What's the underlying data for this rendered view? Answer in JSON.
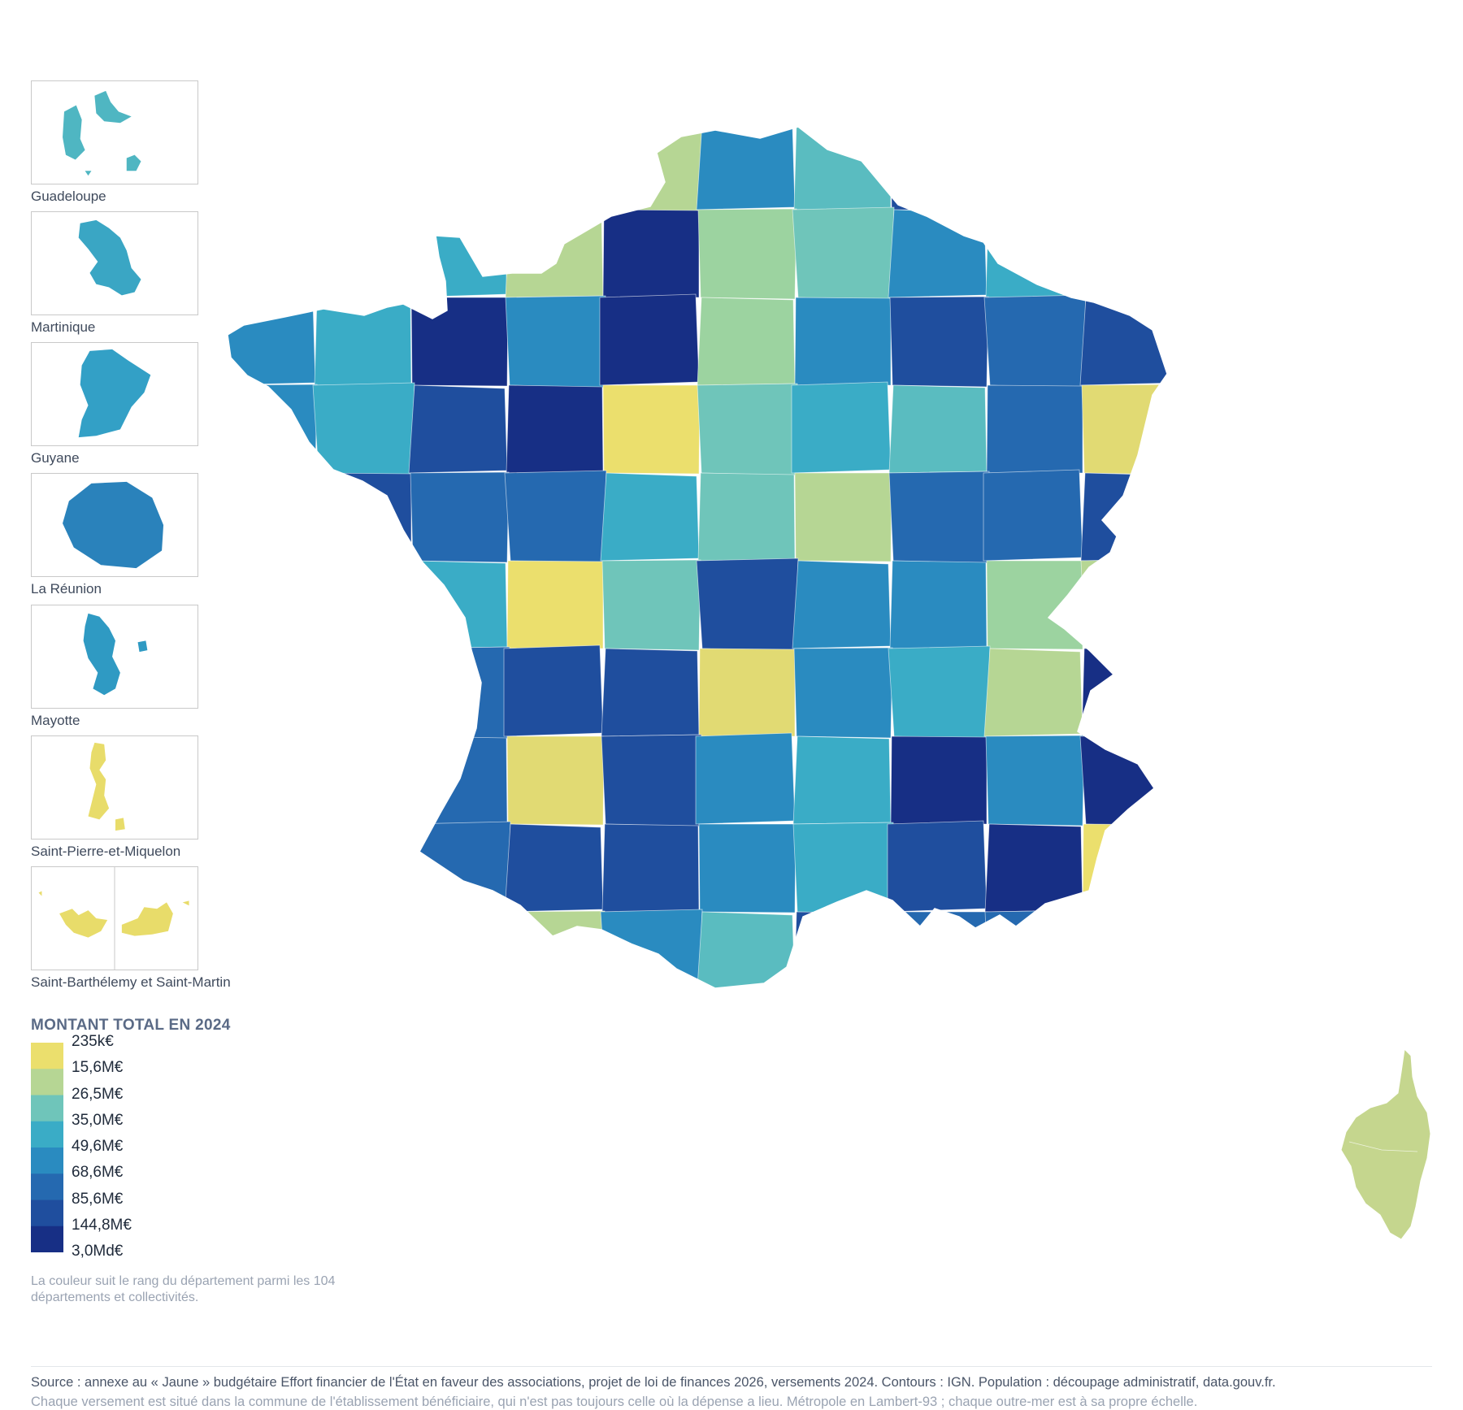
{
  "insets": [
    {
      "label": "Guadeloupe",
      "color": "#4fb6c2"
    },
    {
      "label": "Martinique",
      "color": "#3aa6c4"
    },
    {
      "label": "Guyane",
      "color": "#33a0c6"
    },
    {
      "label": "La Réunion",
      "color": "#2a82bb"
    },
    {
      "label": "Mayotte",
      "color": "#2f9ac3"
    },
    {
      "label": "Saint-Pierre-et-Miquelon",
      "color": "#e8dc6a"
    },
    {
      "label": "Saint-Barthélemy et Saint-Martin",
      "color": "#e8dc6a"
    }
  ],
  "legend": {
    "title": "MONTANT TOTAL EN 2024",
    "ticks": [
      "235k€",
      "15,6M€",
      "26,5M€",
      "35,0M€",
      "49,6M€",
      "68,6M€",
      "85,6M€",
      "144,8M€",
      "3,0Md€"
    ],
    "colors": [
      "#ebdf6d",
      "#b6d694",
      "#6fc5ba",
      "#3aacc6",
      "#2a8bc0",
      "#2569b0",
      "#1f4e9e",
      "#172f85"
    ],
    "note": "La couleur suit le rang du département parmi les 104 départements et collectivités."
  },
  "footer": {
    "source": "Source : annexe au « Jaune » budgétaire Effort financier de l'État en faveur des associations, projet de loi de finances 2026, versements 2024. Contours : IGN. Population : découpage administratif, data.gouv.fr.",
    "note": "Chaque versement est situé dans la commune de l'établissement bénéficiaire, qui n'est pas toujours celle où la dépense a lieu. Métropole en Lambert-93 ; chaque outre-mer est à sa propre échelle."
  },
  "map": {
    "corsica_color": "#c5d68e",
    "regions": [
      {
        "c": "#1f4e9e"
      },
      {
        "c": "#172f85"
      },
      {
        "c": "#2569b0"
      },
      {
        "c": "#3aacc6"
      },
      {
        "c": "#6fc5ba"
      },
      {
        "c": "#1f4e9e"
      },
      {
        "c": "#2569b0"
      },
      {
        "c": "#2a8bc0"
      },
      {
        "c": "#9cd3a0"
      },
      {
        "c": "#1f4e9e"
      },
      {
        "c": "#172f85"
      },
      {
        "c": "#3aacc6"
      },
      {
        "c": "#1f4e9e"
      },
      {
        "c": "#2569b0"
      },
      {
        "c": "#2a8bc0"
      },
      {
        "c": "#6fc5ba"
      },
      {
        "c": "#1f4e9e"
      },
      {
        "c": "#2a8bc0"
      },
      {
        "c": "#5abcc0"
      },
      {
        "c": "#2a8bc0"
      },
      {
        "c": "#3aacc6"
      },
      {
        "c": "#9cd3a0"
      },
      {
        "c": "#2a8bc0"
      },
      {
        "c": "#e1da73"
      },
      {
        "c": "#172f85"
      },
      {
        "c": "#2569b0"
      },
      {
        "c": "#3aacc6"
      },
      {
        "c": "#6fc5ba"
      },
      {
        "c": "#b6d694"
      },
      {
        "c": "#3aacc6"
      },
      {
        "c": "#2a8bc0"
      },
      {
        "c": "#9cd3a0"
      },
      {
        "c": "#e1da73"
      },
      {
        "c": "#1f4e9e"
      },
      {
        "c": "#b6d694"
      },
      {
        "c": "#2a8bc0"
      },
      {
        "c": "#ebdf6d"
      },
      {
        "c": "#3aacc6"
      },
      {
        "c": "#2a8bc0"
      },
      {
        "c": "#1f4e9e"
      },
      {
        "c": "#172f85"
      },
      {
        "c": "#2569b0"
      },
      {
        "c": "#5abcc0"
      },
      {
        "c": "#6fc5ba"
      },
      {
        "c": "#b6d694"
      },
      {
        "c": "#1f4e9e"
      },
      {
        "c": "#2a8bc0"
      },
      {
        "c": "#ebdf6d"
      },
      {
        "c": "#2569b0"
      },
      {
        "c": "#1f4e9e"
      }
    ]
  }
}
